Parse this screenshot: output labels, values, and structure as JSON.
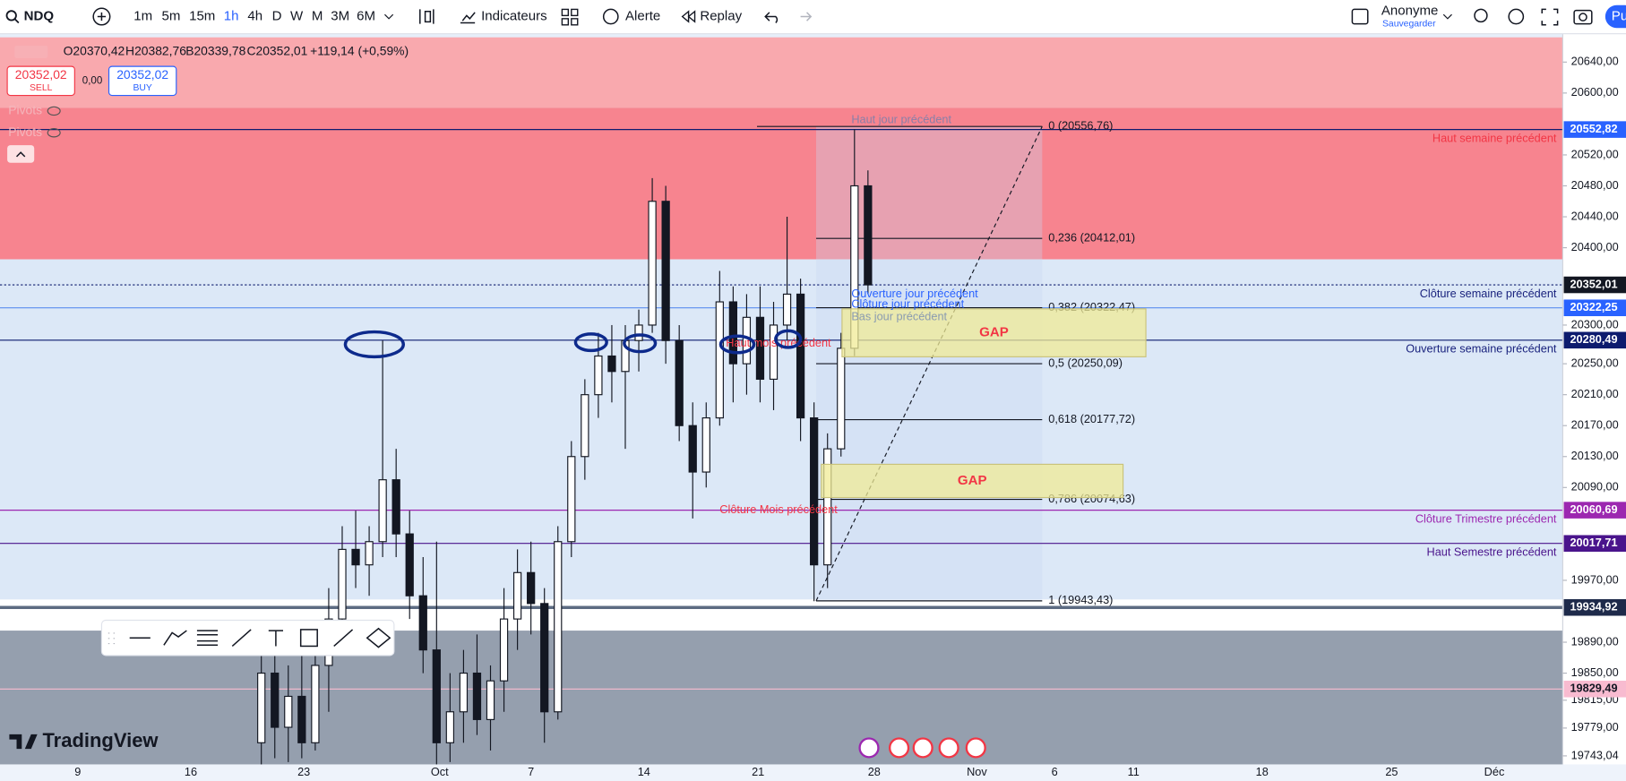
{
  "toolbar": {
    "symbol": "NDQ",
    "intervals": [
      "1m",
      "5m",
      "15m",
      "1h",
      "4h",
      "D",
      "W",
      "M",
      "3M",
      "6M"
    ],
    "indicators": "Indicateurs",
    "alert": "Alerte",
    "replay": "Replay",
    "user": "Anonyme",
    "saved": "Sauvegarder",
    "publish": "Pu"
  },
  "legend": {
    "open": "O20370,42",
    "high": "H20382,76",
    "low": "B20339,78",
    "close": "C20352,01",
    "change": "+119,14 (+0,59%)",
    "sell_price": "20352,02",
    "sell": "SELL",
    "spread": "0,00",
    "buy_price": "20352,02",
    "buy": "BUY",
    "pivots": [
      "Pivots",
      "Pivots"
    ]
  },
  "watermark": "TradingView",
  "chart_data": {
    "type": "candlestick",
    "ylim": [
      19732,
      20672
    ],
    "yticks": [
      {
        "value": 20640,
        "label": "20640,00"
      },
      {
        "value": 20600,
        "label": "20600,00"
      },
      {
        "value": 20520,
        "label": "20520,00"
      },
      {
        "value": 20480,
        "label": "20480,00"
      },
      {
        "value": 20440,
        "label": "20440,00"
      },
      {
        "value": 20400,
        "label": "20400,00"
      },
      {
        "value": 20300,
        "label": "20300,00"
      },
      {
        "value": 20250,
        "label": "20250,00"
      },
      {
        "value": 20210,
        "label": "20210,00"
      },
      {
        "value": 20170,
        "label": "20170,00"
      },
      {
        "value": 20130,
        "label": "20130,00"
      },
      {
        "value": 20090,
        "label": "20090,00"
      },
      {
        "value": 19970,
        "label": "19970,00"
      },
      {
        "value": 19890,
        "label": "19890,00"
      },
      {
        "value": 19850,
        "label": "19850,00"
      },
      {
        "value": 19815,
        "label": "19815,00"
      },
      {
        "value": 19779,
        "label": "19779,00"
      },
      {
        "value": 19743.04,
        "label": "19743,04"
      }
    ],
    "x_labels": [
      "9",
      "16",
      "23",
      "Oct",
      "7",
      "14",
      "21",
      "28",
      "Nov",
      "6",
      "11",
      "18",
      "25",
      "Déc"
    ],
    "candles": {
      "open": [
        19760,
        19850,
        19780,
        19820,
        19760,
        19860,
        19920,
        20010,
        19990,
        20020,
        20100,
        20030,
        19950,
        19880,
        19760,
        19800,
        19850,
        19790,
        19840,
        19920,
        19980,
        19940,
        19800,
        20020,
        20130,
        20210,
        20260,
        20240,
        20280,
        20300,
        20460,
        20280,
        20170,
        20110,
        20180,
        20330,
        20250,
        20310,
        20230,
        20300,
        20340,
        20180,
        19990,
        20140,
        20270,
        20480
      ],
      "high": [
        19900,
        19880,
        19860,
        19900,
        19880,
        19960,
        20040,
        20060,
        20040,
        20280,
        20140,
        20060,
        20000,
        20020,
        19850,
        19880,
        19900,
        19860,
        19960,
        20010,
        20020,
        19960,
        20040,
        20150,
        20230,
        20290,
        20300,
        20300,
        20320,
        20490,
        20480,
        20300,
        20200,
        20200,
        20370,
        20350,
        20340,
        20350,
        20330,
        20440,
        20360,
        20200,
        20160,
        20290,
        20553,
        20500
      ],
      "low": [
        19720,
        19740,
        19735,
        19740,
        19750,
        19800,
        19880,
        19960,
        19950,
        20000,
        20000,
        19920,
        19850,
        19730,
        19735,
        19760,
        19770,
        19750,
        19800,
        19880,
        19900,
        19760,
        19790,
        20000,
        20100,
        20180,
        20200,
        20140,
        20240,
        20290,
        20250,
        20150,
        20050,
        20090,
        20170,
        20200,
        20210,
        20200,
        20190,
        20280,
        20150,
        19943,
        19960,
        20130,
        20260,
        20340
      ],
      "close": [
        19850,
        19780,
        19820,
        19760,
        19860,
        19920,
        20010,
        19990,
        20020,
        20100,
        20030,
        19950,
        19880,
        19760,
        19800,
        19850,
        19790,
        19840,
        19920,
        19980,
        19940,
        19800,
        20020,
        20130,
        20210,
        20260,
        20240,
        20280,
        20300,
        20460,
        20280,
        20170,
        20110,
        20180,
        20330,
        20250,
        20310,
        20230,
        20300,
        20340,
        20180,
        19990,
        20140,
        20270,
        20480,
        20352
      ]
    },
    "levels": [
      {
        "price": 20552.82,
        "label": "20552,82",
        "color": "#2962ff",
        "line": "#0d1b6e",
        "text": "Haut semaine  précédent",
        "text_color": "#f23645"
      },
      {
        "price": 20352.01,
        "label": "20352,01",
        "color": "#131722",
        "line": "#0d1b6e",
        "text": "Clôture semaine précédent",
        "text_color": "#1a237e"
      },
      {
        "price": 20322.25,
        "label": "20322,25",
        "color": "#2962ff",
        "line": "#5b8def"
      },
      {
        "price": 20280.49,
        "label": "20280,49",
        "color": "#0d1b6e",
        "line": "#0d1b6e",
        "text": "Ouverture semaine  précédent",
        "text_color": "#1a237e"
      },
      {
        "price": 20060.69,
        "label": "20060,69",
        "color": "#9c27b0",
        "line": "#9c27b0",
        "text": "Clôture Trimestre précédent",
        "text_color": "#9c27b0"
      },
      {
        "price": 20017.71,
        "label": "20017,71",
        "color": "#4a148c",
        "line": "#4a148c",
        "text": "Haut Semestre précédent",
        "text_color": "#4a148c"
      },
      {
        "price": 19934.92,
        "label": "19934,92",
        "color": "#1e2a4a",
        "line": "#5d6b82"
      },
      {
        "price": 19829.49,
        "label": "19829,49",
        "color": "#f8bbd0",
        "line": "#f8bbd0"
      }
    ],
    "fib": [
      {
        "price": 20556.76,
        "label": "0 (20556,76)"
      },
      {
        "price": 20412.01,
        "label": "0,236 (20412,01)"
      },
      {
        "price": 20322.47,
        "label": "0,382 (20322,47)"
      },
      {
        "price": 20250.09,
        "label": "0,5 (20250,09)"
      },
      {
        "price": 20177.72,
        "label": "0,618 (20177,72)"
      },
      {
        "price": 20074.63,
        "label": "0,786 (20074,63)"
      },
      {
        "price": 19943.43,
        "label": "1 (19943,43)"
      }
    ],
    "annotations": [
      {
        "text": "Haut jour précédent",
        "price": 20556.76,
        "color": "#8a7fa8"
      },
      {
        "text": "Ouverture jour précédent",
        "price": 20352,
        "color": "#2962ff"
      },
      {
        "text": "Clôture jour précédent",
        "price": 20345,
        "color": "#2962ff"
      },
      {
        "text": "Bas jour précédent",
        "price": 20322,
        "color": "#8a9bb0"
      },
      {
        "text": "Haut mois précédent",
        "price": 20276,
        "color": "#f23645"
      },
      {
        "text": "Clôture Mois précédent",
        "price": 20060.69,
        "color": "#f23645"
      }
    ],
    "gaps": [
      {
        "label": "GAP",
        "top": 20321,
        "bottom": 20259
      },
      {
        "label": "GAP",
        "top": 20120,
        "bottom": 20077
      }
    ]
  }
}
